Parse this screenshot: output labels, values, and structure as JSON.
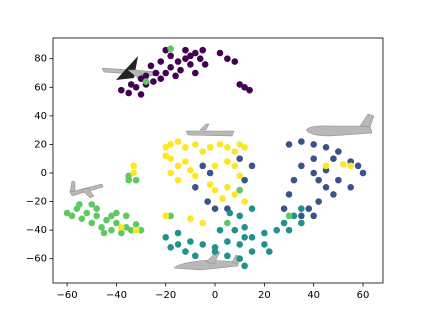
{
  "chart_data": {
    "type": "scatter",
    "xlim": [
      -65.7,
      68.1
    ],
    "ylim": [
      -77,
      94.5
    ],
    "xticks": [
      {
        "value": -60,
        "label": "−60"
      },
      {
        "value": -40,
        "label": "−40"
      },
      {
        "value": -20,
        "label": "−20"
      },
      0,
      20,
      40,
      60
    ],
    "yticks": [
      {
        "value": -60,
        "label": "−60"
      },
      {
        "value": -40,
        "label": "−40"
      },
      {
        "value": -20,
        "label": "−20"
      },
      0,
      20,
      40,
      60,
      80
    ],
    "grid": false,
    "series": [
      {
        "color": "#440154",
        "x": [
          -38,
          -35,
          -32,
          -30,
          -28,
          -25,
          -22,
          -20,
          -18,
          -15,
          -12,
          -10,
          -8,
          -6,
          -4,
          -10,
          -14,
          -16,
          -24,
          -26,
          -22,
          -18,
          -12,
          -20,
          -28,
          -34,
          -30,
          -8,
          2,
          5,
          8,
          10,
          -5,
          12,
          14
        ],
        "y": [
          58,
          56,
          60,
          55,
          62,
          64,
          66,
          70,
          74,
          78,
          80,
          82,
          84,
          80,
          76,
          76,
          72,
          68,
          70,
          75,
          78,
          82,
          86,
          86,
          68,
          62,
          66,
          70,
          84,
          80,
          78,
          62,
          86,
          60,
          58
        ]
      },
      {
        "color": "#3b528b",
        "x": [
          30,
          35,
          40,
          45,
          50,
          55,
          58,
          60,
          35,
          40,
          42,
          45,
          48,
          42,
          38,
          35,
          30,
          32,
          45,
          50,
          55,
          40,
          48,
          -5,
          -2,
          -8,
          -3,
          0,
          5,
          12,
          15,
          10,
          28,
          40
        ],
        "y": [
          20,
          22,
          20,
          18,
          15,
          8,
          5,
          0,
          5,
          0,
          -5,
          -10,
          -15,
          -20,
          -25,
          -30,
          -15,
          -5,
          2,
          -5,
          -10,
          10,
          10,
          5,
          0,
          -10,
          -20,
          -25,
          -25,
          -5,
          5,
          10,
          -25,
          -30
        ]
      },
      {
        "color": "#21918c",
        "x": [
          -20,
          -15,
          -10,
          -5,
          0,
          5,
          10,
          15,
          20,
          25,
          28,
          32,
          35,
          -12,
          -8,
          0,
          5,
          10,
          15,
          20,
          22,
          12,
          8,
          2,
          6,
          10,
          12,
          15,
          -15,
          -18,
          30,
          35,
          12
        ],
        "y": [
          -45,
          -42,
          -48,
          -50,
          -52,
          -48,
          -50,
          -45,
          -42,
          -40,
          -35,
          -30,
          -25,
          -55,
          -58,
          -55,
          -58,
          -60,
          -55,
          -50,
          -55,
          -45,
          -40,
          -40,
          -28,
          -30,
          -38,
          -25,
          -50,
          -52,
          -40,
          -35,
          -65
        ]
      },
      {
        "color": "#5ec962",
        "x": [
          -60,
          -58,
          -56,
          -54,
          -52,
          -50,
          -48,
          -46,
          -44,
          -42,
          -40,
          -38,
          -36,
          -34,
          -32,
          -36,
          -40,
          -50,
          -55,
          -45,
          -42,
          -30,
          -48,
          -35,
          -35,
          -32,
          5,
          -18,
          10,
          30,
          -28,
          -18
        ],
        "y": [
          -28,
          -30,
          -25,
          -32,
          -28,
          -35,
          -30,
          -38,
          -33,
          -40,
          -35,
          -42,
          -38,
          -40,
          -36,
          -30,
          -28,
          -22,
          -22,
          -42,
          -30,
          -40,
          -25,
          -2,
          -5,
          -5,
          -35,
          -30,
          -12,
          -30,
          64,
          87
        ]
      },
      {
        "color": "#fde725",
        "x": [
          -20,
          -18,
          -15,
          -12,
          -8,
          -5,
          -2,
          2,
          5,
          8,
          10,
          12,
          -18,
          -15,
          -12,
          -10,
          -18,
          -15,
          -8,
          0,
          5,
          8,
          10,
          5,
          0,
          3,
          8,
          12,
          -2,
          -20,
          -33,
          -33,
          -20,
          -32,
          -5,
          -10,
          45,
          52,
          55,
          -38
        ],
        "y": [
          18,
          20,
          22,
          18,
          20,
          15,
          18,
          20,
          18,
          15,
          20,
          18,
          10,
          5,
          8,
          2,
          0,
          -5,
          -2,
          5,
          8,
          5,
          -2,
          -10,
          -12,
          -18,
          -15,
          -20,
          -8,
          12,
          5,
          0,
          -30,
          -40,
          -35,
          -32,
          5,
          6,
          5,
          -38
        ]
      }
    ]
  }
}
